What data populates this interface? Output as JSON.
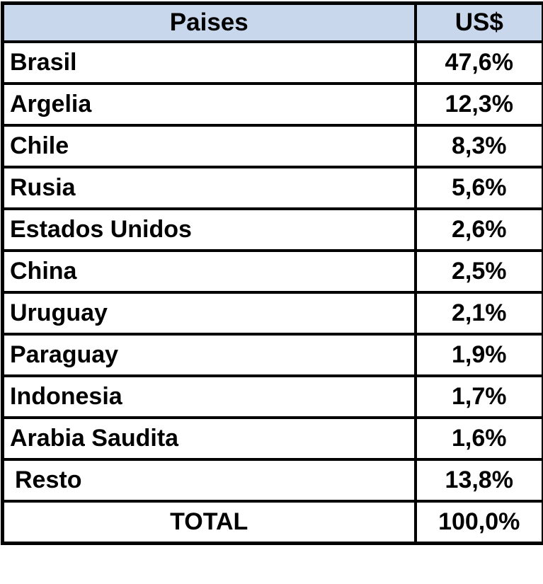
{
  "table": {
    "header": {
      "country": "Paises",
      "value": "US$"
    },
    "rows": [
      {
        "country": "Brasil",
        "value": "47,6%"
      },
      {
        "country": "Argelia",
        "value": "12,3%"
      },
      {
        "country": "Chile",
        "value": "8,3%"
      },
      {
        "country": "Rusia",
        "value": "5,6%"
      },
      {
        "country": "Estados Unidos",
        "value": "2,6%"
      },
      {
        "country": "China",
        "value": "2,5%"
      },
      {
        "country": "Uruguay",
        "value": "2,1%"
      },
      {
        "country": "Paraguay",
        "value": "1,9%"
      },
      {
        "country": "Indonesia",
        "value": "1,7%"
      },
      {
        "country": "Arabia Saudita",
        "value": "1,6%"
      },
      {
        "country": "Resto",
        "value": "13,8%"
      }
    ],
    "total": {
      "label": "TOTAL",
      "value": "100,0%"
    }
  },
  "colors": {
    "header_background": "#C9D7ED",
    "border": "#000000",
    "text": "#000000",
    "row_background": "#FFFFFF"
  },
  "chart_data": {
    "type": "table",
    "title": "",
    "columns": [
      "Paises",
      "US$"
    ],
    "categories": [
      "Brasil",
      "Argelia",
      "Chile",
      "Rusia",
      "Estados Unidos",
      "China",
      "Uruguay",
      "Paraguay",
      "Indonesia",
      "Arabia Saudita",
      "Resto"
    ],
    "values": [
      47.6,
      12.3,
      8.3,
      5.6,
      2.6,
      2.5,
      2.1,
      1.9,
      1.7,
      1.6,
      13.8
    ],
    "total": 100.0,
    "value_unit": "% of US$",
    "rows": [
      [
        "Brasil",
        "47,6%"
      ],
      [
        "Argelia",
        "12,3%"
      ],
      [
        "Chile",
        "8,3%"
      ],
      [
        "Rusia",
        "5,6%"
      ],
      [
        "Estados Unidos",
        "2,6%"
      ],
      [
        "China",
        "2,5%"
      ],
      [
        "Uruguay",
        "2,1%"
      ],
      [
        "Paraguay",
        "1,9%"
      ],
      [
        "Indonesia",
        "1,7%"
      ],
      [
        "Arabia Saudita",
        "1,6%"
      ],
      [
        "Resto",
        "13,8%"
      ],
      [
        "TOTAL",
        "100,0%"
      ]
    ]
  }
}
